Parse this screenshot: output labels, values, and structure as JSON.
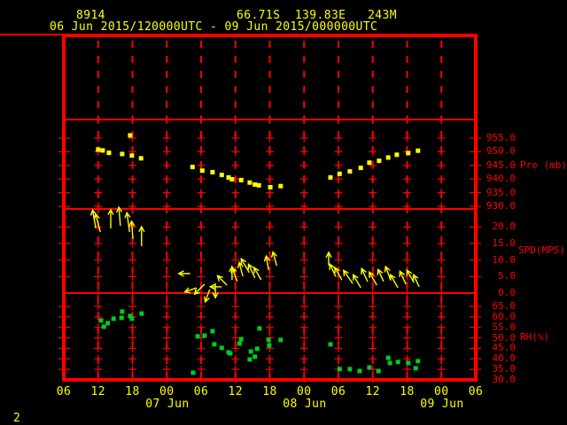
{
  "header": {
    "station_id": "8914",
    "location": "66.71S  139.83E   243M",
    "time_range": "06 Jun 2015/120000UTC - 09 Jun 2015/000000UTC"
  },
  "footer": {
    "page_number": "2"
  },
  "colors": {
    "background": "#000000",
    "axis_red": "#ff0000",
    "data_yellow": "#ffff00",
    "rh_green": "#00cc22"
  },
  "chart_data": {
    "type": "multi-panel-time-series",
    "title": "06 Jun 2015/120000UTC - 09 Jun 2015/000000UTC",
    "x_axis": {
      "t_unit": "hours UTC since 06 Jun 2015 00UTC",
      "range": [
        6,
        78
      ],
      "tick_step_hours": 6,
      "tick_labels": [
        "06",
        "12",
        "18",
        "00",
        "06",
        "12",
        "18",
        "00",
        "06",
        "12",
        "18",
        "00",
        "06"
      ],
      "date_labels": [
        {
          "label": "07 Jun",
          "tick_index": 3
        },
        {
          "label": "08 Jun",
          "tick_index": 7
        },
        {
          "label": "09 Jun",
          "tick_index": 11
        }
      ],
      "grid": "dashed-vertical"
    },
    "panels": [
      {
        "id": "blank-upper",
        "ylabel": "",
        "yticks": [],
        "ytick_labels": [],
        "points": []
      },
      {
        "id": "pressure",
        "type": "scatter",
        "ylabel": "Pre (mb)",
        "marker": "square",
        "color": "#ffff00",
        "yticks": [
          955,
          950,
          945,
          940,
          935,
          930
        ],
        "ytick_labels": [
          "955.0",
          "950.0",
          "945.0",
          "940.0",
          "935.0",
          "930.0"
        ],
        "points": [
          [
            12.0,
            950.8
          ],
          [
            12.8,
            950.5
          ],
          [
            13.9,
            949.6
          ],
          [
            16.2,
            949.2
          ],
          [
            17.6,
            956.0
          ],
          [
            17.9,
            948.6
          ],
          [
            19.5,
            947.6
          ],
          [
            28.5,
            944.4
          ],
          [
            30.2,
            943.1
          ],
          [
            32.0,
            942.5
          ],
          [
            33.6,
            941.5
          ],
          [
            34.8,
            940.6
          ],
          [
            35.4,
            939.9
          ],
          [
            37.0,
            939.6
          ],
          [
            38.5,
            938.7
          ],
          [
            39.4,
            938.0
          ],
          [
            40.1,
            937.7
          ],
          [
            42.1,
            937.0
          ],
          [
            43.9,
            937.4
          ],
          [
            52.6,
            940.6
          ],
          [
            54.2,
            941.9
          ],
          [
            56.0,
            942.8
          ],
          [
            57.9,
            944.1
          ],
          [
            59.4,
            946.0
          ],
          [
            61.1,
            946.7
          ],
          [
            62.7,
            947.9
          ],
          [
            64.2,
            948.9
          ],
          [
            66.2,
            949.5
          ],
          [
            67.9,
            950.4
          ]
        ]
      },
      {
        "id": "wind-speed",
        "type": "vector",
        "ylabel": "SPD(MPS)",
        "color": "#ffff00",
        "yticks": [
          20,
          15,
          10,
          5,
          0
        ],
        "ytick_labels": [
          "20.0",
          "15.0",
          "10.0",
          "5.0",
          "0.0"
        ],
        "arrow_fields": [
          "t_hours",
          "speed_mps",
          "dir_deg_clockwise_from_up",
          "length_px"
        ],
        "arrows": [
          [
            11.6,
            19.6,
            350,
            21
          ],
          [
            12.4,
            18.5,
            345,
            21
          ],
          [
            14.2,
            19.6,
            0,
            21
          ],
          [
            15.9,
            20.4,
            355,
            21
          ],
          [
            17.5,
            18.5,
            352,
            22
          ],
          [
            18.1,
            16.4,
            355,
            20
          ],
          [
            19.6,
            14.2,
            0,
            22
          ],
          [
            28.1,
            5.9,
            270,
            13
          ],
          [
            29.2,
            1.6,
            250,
            14
          ],
          [
            30.6,
            2.7,
            225,
            16
          ],
          [
            31.5,
            1.1,
            200,
            15
          ],
          [
            32.5,
            2.9,
            180,
            16
          ],
          [
            33.6,
            1.9,
            270,
            13
          ],
          [
            34.5,
            2.4,
            315,
            15
          ],
          [
            35.4,
            4.0,
            0,
            15
          ],
          [
            36.3,
            3.5,
            340,
            17
          ],
          [
            37.3,
            5.1,
            345,
            16
          ],
          [
            38.4,
            6.2,
            330,
            18
          ],
          [
            39.4,
            4.6,
            335,
            17
          ],
          [
            40.5,
            4.0,
            330,
            16
          ],
          [
            41.8,
            7.0,
            350,
            16
          ],
          [
            43.2,
            8.3,
            345,
            16
          ],
          [
            52.3,
            8.3,
            0,
            15
          ],
          [
            53.5,
            5.1,
            335,
            15
          ],
          [
            54.6,
            4.0,
            330,
            16
          ],
          [
            56.5,
            2.9,
            325,
            18
          ],
          [
            57.9,
            1.6,
            330,
            17
          ],
          [
            59.1,
            3.5,
            335,
            16
          ],
          [
            60.7,
            2.4,
            330,
            17
          ],
          [
            61.9,
            3.5,
            335,
            15
          ],
          [
            63.1,
            4.0,
            340,
            16
          ],
          [
            64.4,
            1.6,
            330,
            17
          ],
          [
            65.8,
            2.7,
            335,
            16
          ],
          [
            67.2,
            3.2,
            330,
            16
          ],
          [
            68.1,
            1.9,
            335,
            15
          ]
        ]
      },
      {
        "id": "relative-humidity",
        "type": "scatter",
        "ylabel": "RH(%)",
        "marker": "square",
        "color": "#00cc22",
        "yticks": [
          65,
          60,
          55,
          50,
          45,
          40,
          35,
          30
        ],
        "ytick_labels": [
          "65.0",
          "60.0",
          "55.0",
          "50.0",
          "45.0",
          "40.0",
          "35.0",
          "30.0"
        ],
        "points": [
          [
            12.5,
            58.3
          ],
          [
            13.0,
            55.3
          ],
          [
            13.7,
            57.0
          ],
          [
            14.7,
            59.1
          ],
          [
            16.1,
            59.5
          ],
          [
            16.2,
            62.5
          ],
          [
            17.6,
            60.4
          ],
          [
            17.9,
            59.1
          ],
          [
            19.6,
            61.6
          ],
          [
            28.6,
            33.4
          ],
          [
            29.4,
            50.7
          ],
          [
            30.6,
            51.1
          ],
          [
            32.0,
            53.2
          ],
          [
            32.3,
            46.9
          ],
          [
            33.6,
            45.2
          ],
          [
            34.8,
            43.1
          ],
          [
            35.1,
            42.6
          ],
          [
            36.7,
            47.3
          ],
          [
            37.0,
            49.4
          ],
          [
            38.5,
            39.7
          ],
          [
            38.7,
            43.5
          ],
          [
            39.4,
            41.0
          ],
          [
            39.8,
            44.8
          ],
          [
            40.2,
            54.5
          ],
          [
            41.8,
            49.0
          ],
          [
            41.9,
            46.4
          ],
          [
            43.9,
            49.0
          ],
          [
            52.6,
            46.9
          ],
          [
            54.2,
            35.1
          ],
          [
            56.0,
            35.1
          ],
          [
            57.7,
            34.2
          ],
          [
            59.4,
            35.9
          ],
          [
            61.0,
            34.2
          ],
          [
            62.7,
            40.5
          ],
          [
            63.0,
            38.0
          ],
          [
            64.4,
            38.5
          ],
          [
            66.2,
            38.0
          ],
          [
            67.5,
            35.5
          ],
          [
            67.9,
            38.9
          ]
        ]
      }
    ]
  }
}
